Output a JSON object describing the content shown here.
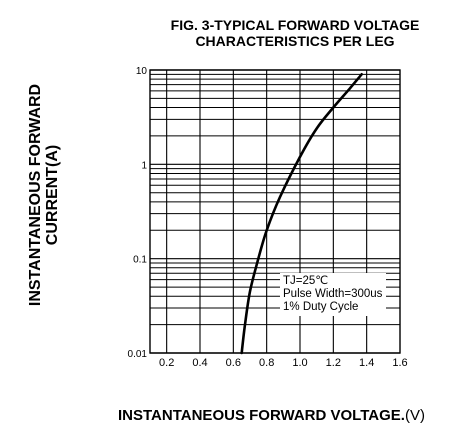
{
  "chart_data": {
    "type": "line",
    "title_line1": "FIG. 3-TYPICAL FORWARD VOLTAGE",
    "title_line2": "CHARACTERISTICS PER LEG",
    "ylabel_line1": "INSTANTANEOUS FORWARD",
    "ylabel_line2": "CURRENT(A)",
    "xlabel": "INSTANTANEOUS FORWARD VOLTAGE.",
    "xlabel_unit": "(V)",
    "xlim": [
      0.1,
      1.6
    ],
    "ylim": [
      0.01,
      10
    ],
    "yscale": "log",
    "grid": true,
    "x_ticks": [
      "0.2",
      "0.4",
      "0.6",
      "0.8",
      "1.0",
      "1.2",
      "1.4",
      "1.6"
    ],
    "y_ticks": [
      "0.01",
      "0.1",
      "1",
      "10"
    ],
    "annotations": [
      "TJ=25℃",
      "Pulse Width=300us",
      "1% Duty Cycle"
    ],
    "series": [
      {
        "x": [
          0.65,
          0.67,
          0.7,
          0.75,
          0.8,
          0.88,
          1.0,
          1.1,
          1.2,
          1.3,
          1.37
        ],
        "y": [
          0.01,
          0.02,
          0.045,
          0.1,
          0.2,
          0.45,
          1.2,
          2.4,
          4.0,
          6.4,
          9.0
        ]
      }
    ]
  }
}
